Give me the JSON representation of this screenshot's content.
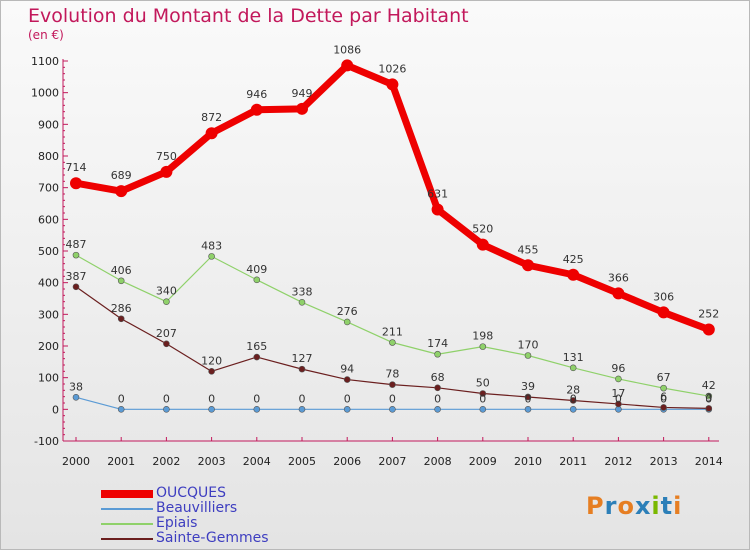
{
  "header": {
    "title": "Evolution du Montant de la Dette par Habitant",
    "unit": "(en €)"
  },
  "logo": {
    "text": "Proxiti",
    "colors": [
      "#e67e22",
      "#2c7fb8",
      "#e67e22",
      "#2c7fb8",
      "#7ab800",
      "#2c7fb8",
      "#e67e22"
    ]
  },
  "chart_data": {
    "type": "line",
    "title": "Evolution du Montant de la Dette par Habitant",
    "ylabel": "(en €)",
    "xlabel": "",
    "x": [
      "2000",
      "2001",
      "2002",
      "2003",
      "2004",
      "2005",
      "2006",
      "2007",
      "2008",
      "2009",
      "2010",
      "2011",
      "2012",
      "2013",
      "2014"
    ],
    "ylim": [
      -100,
      1100
    ],
    "yticks": [
      "-100",
      "0",
      "100",
      "200",
      "300",
      "400",
      "500",
      "600",
      "700",
      "800",
      "900",
      "1000",
      "1100"
    ],
    "grid": false,
    "legend": "bottom-left",
    "series": [
      {
        "name": "OUCQUES",
        "color": "#ee0000",
        "values": [
          714,
          689,
          750,
          872,
          946,
          949,
          1086,
          1026,
          631,
          520,
          455,
          425,
          366,
          306,
          252
        ],
        "labels": [
          "714",
          "689",
          "750",
          "872",
          "946",
          "949",
          "1086",
          "1026",
          "631",
          "520",
          "455",
          "425",
          "366",
          "306",
          "252"
        ]
      },
      {
        "name": "Beauvilliers",
        "color": "#5b9bd5",
        "values": [
          38,
          0,
          0,
          0,
          0,
          0,
          0,
          0,
          0,
          0,
          0,
          0,
          0,
          0,
          0
        ],
        "labels": [
          "38",
          "0",
          "0",
          "0",
          "0",
          "0",
          "0",
          "0",
          "0",
          "0",
          "0",
          "0",
          "0",
          "0",
          "0"
        ]
      },
      {
        "name": "Epiais",
        "color": "#8fd16a",
        "values": [
          487,
          406,
          340,
          483,
          409,
          338,
          276,
          211,
          174,
          198,
          170,
          131,
          96,
          67,
          42
        ],
        "labels": [
          "487",
          "406",
          "340",
          "483",
          "409",
          "338",
          "276",
          "211",
          "174",
          "198",
          "170",
          "131",
          "96",
          "67",
          "42"
        ]
      },
      {
        "name": "Sainte-Gemmes",
        "color": "#6b1f1f",
        "values": [
          387,
          286,
          207,
          120,
          165,
          127,
          94,
          78,
          68,
          50,
          39,
          28,
          17,
          6,
          3
        ],
        "labels": [
          "387",
          "286",
          "207",
          "120",
          "165",
          "127",
          "94",
          "78",
          "68",
          "50",
          "39",
          "28",
          "17",
          "6",
          "3"
        ]
      }
    ]
  }
}
